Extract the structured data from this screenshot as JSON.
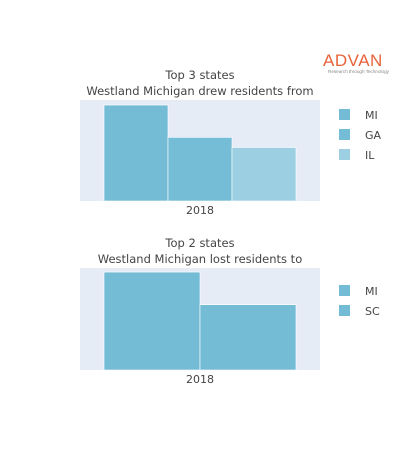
{
  "logo": {
    "text": "ADVAN",
    "tagline": "Research through Technology"
  },
  "colors": {
    "plot_bg": "#e5ecf6",
    "MI": "#74bcd6",
    "GA": "#75bcd6",
    "IL": "#9ccfe2",
    "SC": "#74bcd6",
    "bar_outline": "#ffffff"
  },
  "chart_data": [
    {
      "type": "bar",
      "title": [
        "Top 3 states",
        "Westland Michigan drew residents from"
      ],
      "categories": [
        "2018"
      ],
      "xlabel": "",
      "ylabel": "",
      "grid": false,
      "legend_position": "right",
      "series": [
        {
          "name": "MI",
          "values": [
            95
          ]
        },
        {
          "name": "GA",
          "values": [
            63
          ]
        },
        {
          "name": "IL",
          "values": [
            53
          ]
        }
      ],
      "ylim": [
        0,
        100
      ]
    },
    {
      "type": "bar",
      "title": [
        "Top 2 states",
        "Westland Michigan lost residents to"
      ],
      "categories": [
        "2018"
      ],
      "xlabel": "",
      "ylabel": "",
      "grid": false,
      "legend_position": "right",
      "series": [
        {
          "name": "MI",
          "values": [
            96
          ]
        },
        {
          "name": "SC",
          "values": [
            64
          ]
        }
      ],
      "ylim": [
        0,
        100
      ]
    }
  ]
}
